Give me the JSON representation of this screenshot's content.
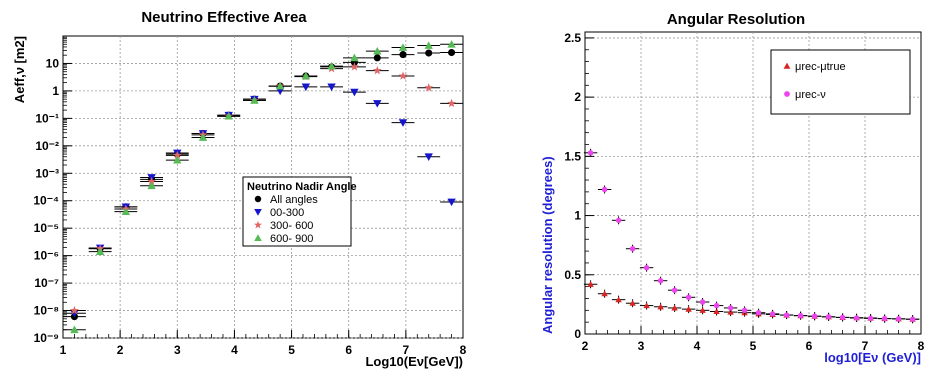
{
  "chart_data": [
    {
      "type": "scatter",
      "title": "Neutrino Effective Area",
      "title_color": "#1f1fd6",
      "xlabel": "Log10(Eν[GeV])",
      "ylabel": "Aeff,ν [m2]",
      "xlim": [
        1,
        8
      ],
      "ylim_log10": [
        -9,
        2
      ],
      "x_ticks": [
        "1",
        "2",
        "3",
        "4",
        "5",
        "6",
        "7",
        "8"
      ],
      "y_ticks": [
        "10⁻⁹",
        "10⁻⁸",
        "10⁻⁷",
        "10⁻⁶",
        "10⁻⁵",
        "10⁻⁴",
        "10⁻³",
        "10⁻²",
        "10⁻¹",
        "1",
        "10"
      ],
      "log_scale_y": true,
      "grid": true,
      "x_error_half_width": 0.2,
      "legend": {
        "title": "Neutrino Nadir Angle",
        "placement": "right-middle",
        "entries": [
          "All angles",
          "00-300",
          "300- 600",
          "600- 900"
        ]
      },
      "series": [
        {
          "name": "All angles",
          "marker": "circle",
          "color": "#000000",
          "x": [
            1.2,
            1.65,
            2.1,
            2.55,
            3.0,
            3.45,
            3.9,
            4.35,
            4.8,
            5.25,
            5.7,
            6.1,
            6.5,
            6.95,
            7.4,
            7.8
          ],
          "y": [
            6e-09,
            1.8e-06,
            6e-05,
            0.0006,
            0.005,
            0.028,
            0.13,
            0.5,
            1.5,
            3.5,
            7.5,
            11,
            16,
            21,
            24,
            25
          ]
        },
        {
          "name": "00-300",
          "marker": "triangle-down",
          "color": "#1515cc",
          "x": [
            1.2,
            1.65,
            2.1,
            2.55,
            3.0,
            3.45,
            3.9,
            4.35,
            4.8,
            5.25,
            5.7,
            6.1,
            6.5,
            6.95,
            7.4,
            7.8
          ],
          "y": [
            8e-09,
            1.9e-06,
            6e-05,
            0.0007,
            0.0055,
            0.028,
            0.13,
            0.5,
            1.0,
            1.4,
            1.4,
            0.9,
            0.35,
            0.07,
            0.004,
            9e-05
          ]
        },
        {
          "name": "300- 600",
          "marker": "star",
          "color": "#e06666",
          "x": [
            1.2,
            1.65,
            2.1,
            2.55,
            3.0,
            3.45,
            3.9,
            4.35,
            4.8,
            5.25,
            5.7,
            6.1,
            6.5,
            6.95,
            7.4,
            7.8
          ],
          "y": [
            1e-08,
            1.8e-06,
            5e-05,
            0.0005,
            0.0045,
            0.025,
            0.12,
            0.45,
            1.5,
            3.3,
            6.5,
            7.5,
            5.5,
            3.5,
            1.3,
            0.35
          ]
        },
        {
          "name": "600- 900",
          "marker": "triangle-up",
          "color": "#55bb55",
          "x": [
            1.2,
            1.65,
            2.1,
            2.55,
            3.0,
            3.45,
            3.9,
            4.35,
            4.8,
            5.25,
            5.7,
            6.1,
            6.5,
            6.95,
            7.4,
            7.8
          ],
          "y": [
            2e-09,
            1.4e-06,
            4e-05,
            0.00035,
            0.003,
            0.02,
            0.12,
            0.45,
            1.5,
            3.5,
            8,
            16,
            28,
            38,
            45,
            50
          ]
        }
      ]
    },
    {
      "type": "scatter",
      "title": "Angular Resolution",
      "title_color": "#66cc66",
      "xlabel": "log10[Eν (GeV)]",
      "ylabel": "Angular resolution (degrees)",
      "label_color": "#1f1fd6",
      "xlim": [
        2,
        8
      ],
      "ylim": [
        0,
        2.55
      ],
      "x_ticks": [
        "2",
        "3",
        "4",
        "5",
        "6",
        "7",
        "8"
      ],
      "y_ticks": [
        "0",
        "0.5",
        "1",
        "1.5",
        "2",
        "2.5"
      ],
      "grid": true,
      "x_error_half_width": 0.12,
      "legend": {
        "placement": "top-right",
        "entries": [
          "μrec-μtrue",
          "μrec-ν"
        ]
      },
      "series": [
        {
          "name": "μrec-μtrue",
          "marker": "triangle-up",
          "color": "#dd2222",
          "x": [
            2.1,
            2.35,
            2.6,
            2.85,
            3.1,
            3.35,
            3.6,
            3.85,
            4.1,
            4.35,
            4.6,
            4.85,
            5.1,
            5.35,
            5.6,
            5.85,
            6.1,
            6.35,
            6.6,
            6.85,
            7.1,
            7.35,
            7.6,
            7.85
          ],
          "y": [
            0.42,
            0.34,
            0.29,
            0.26,
            0.24,
            0.23,
            0.22,
            0.21,
            0.2,
            0.19,
            0.185,
            0.18,
            0.17,
            0.165,
            0.16,
            0.155,
            0.15,
            0.145,
            0.14,
            0.138,
            0.135,
            0.13,
            0.128,
            0.125
          ]
        },
        {
          "name": "μrec-ν",
          "marker": "circle",
          "color": "#ee44ee",
          "x": [
            2.1,
            2.35,
            2.6,
            2.85,
            3.1,
            3.35,
            3.6,
            3.85,
            4.1,
            4.35,
            4.6,
            4.85,
            5.1,
            5.35,
            5.6,
            5.85,
            6.1,
            6.35,
            6.6,
            6.85,
            7.1,
            7.35,
            7.6,
            7.85
          ],
          "y": [
            1.53,
            1.22,
            0.96,
            0.72,
            0.56,
            0.45,
            0.37,
            0.31,
            0.27,
            0.24,
            0.22,
            0.2,
            0.18,
            0.17,
            0.16,
            0.155,
            0.15,
            0.145,
            0.14,
            0.135,
            0.132,
            0.13,
            0.128,
            0.125
          ]
        }
      ]
    }
  ]
}
